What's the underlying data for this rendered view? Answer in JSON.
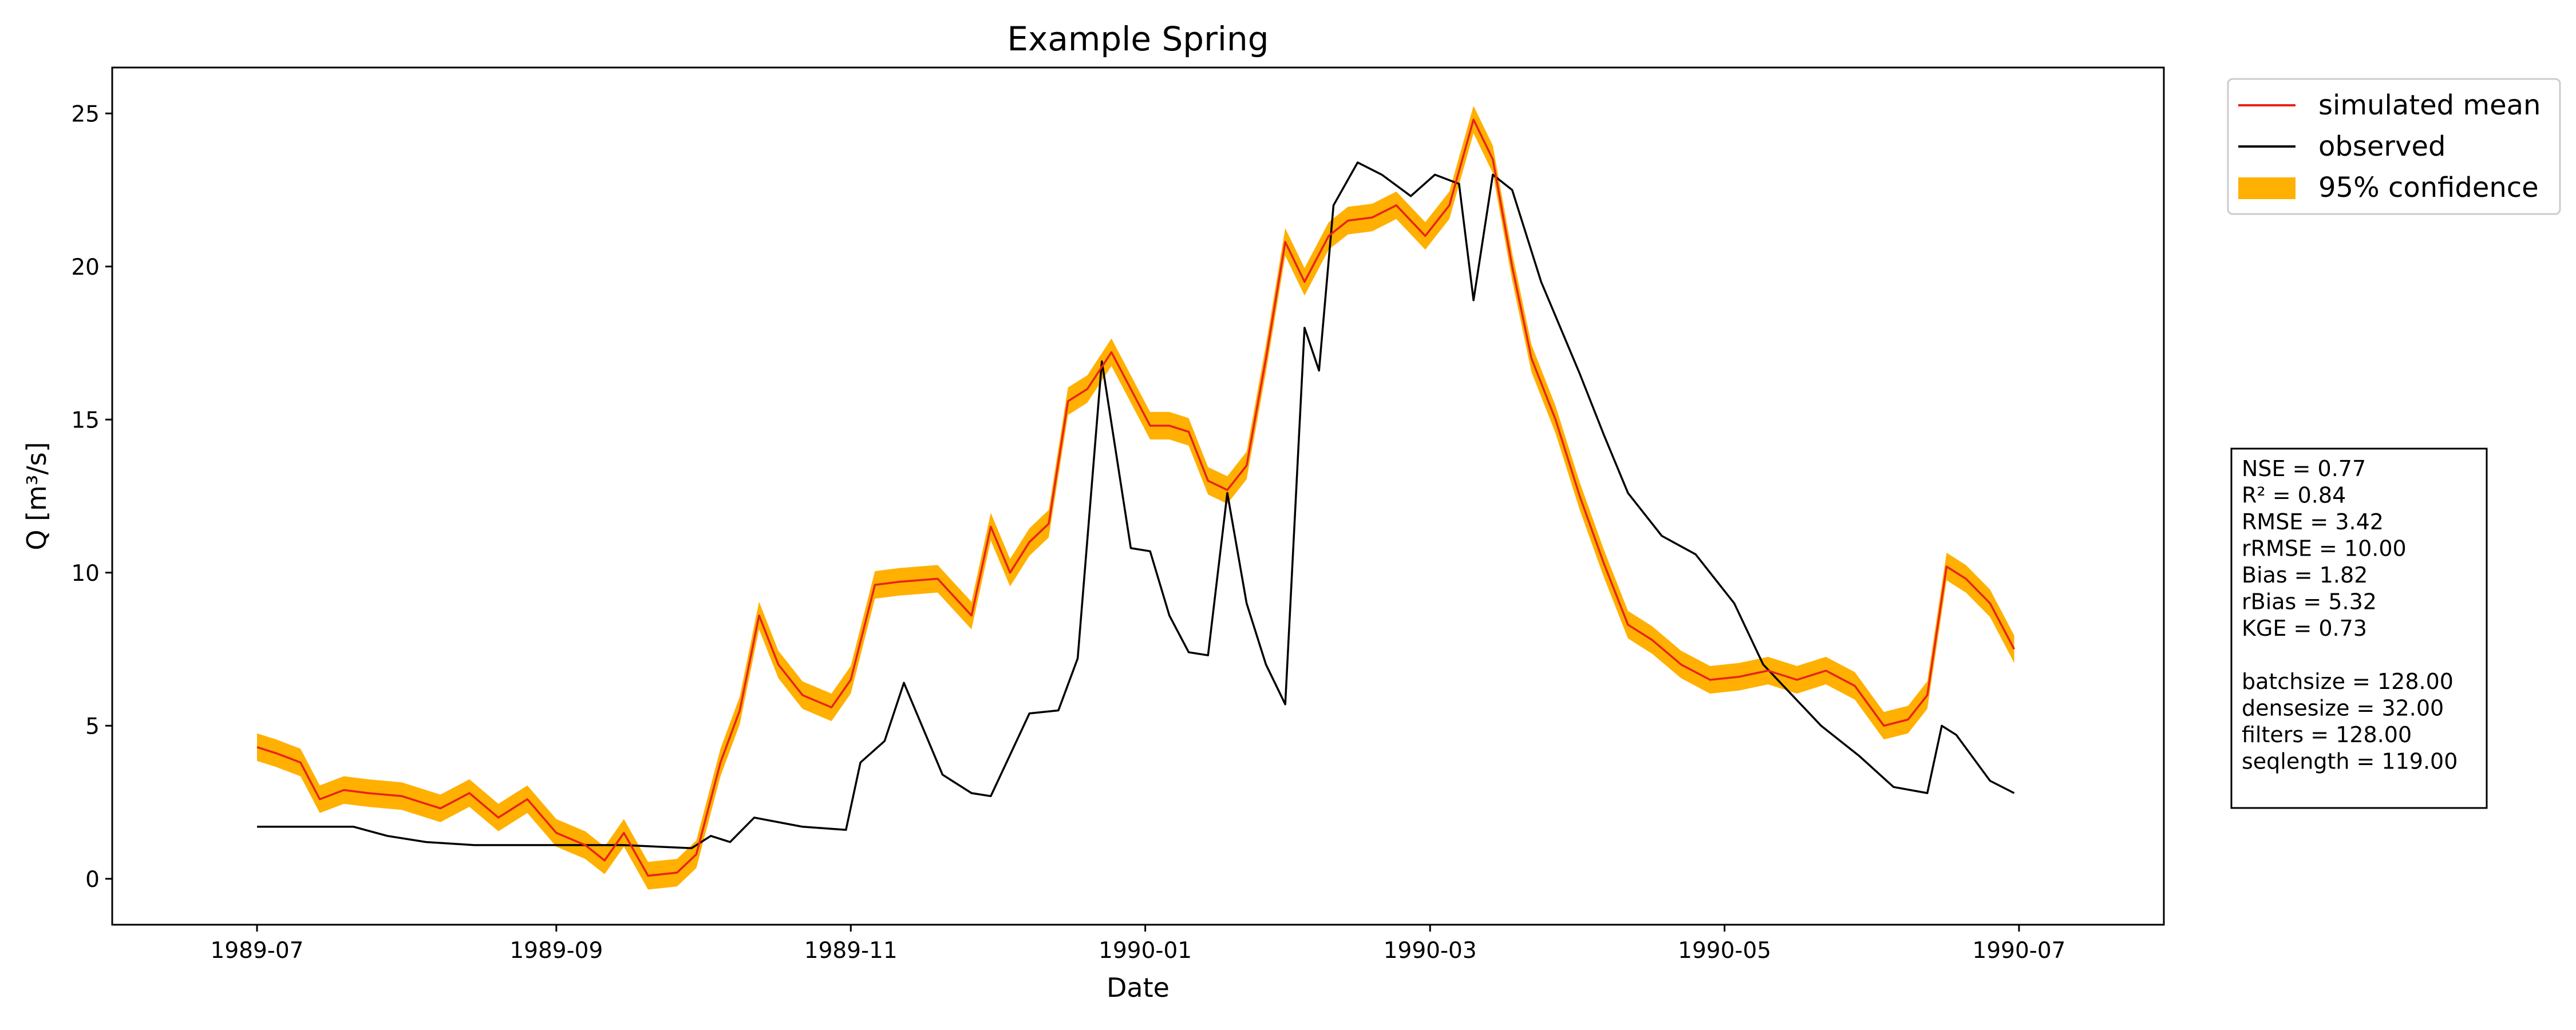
{
  "chart_data": {
    "type": "line",
    "title": "Example Spring",
    "xlabel": "Date",
    "ylabel": "Q [m³/s]",
    "xlim": [
      "1989-06-01",
      "1990-07-31"
    ],
    "ylim": [
      -1.5,
      26.5
    ],
    "x_ticks": [
      "1989-07",
      "1989-09",
      "1989-11",
      "1990-01",
      "1990-03",
      "1990-05",
      "1990-07"
    ],
    "y_ticks": [
      0,
      5,
      10,
      15,
      20,
      25
    ],
    "grid": false,
    "legend_position": "outside-upper-right",
    "series": [
      {
        "name": "simulated mean",
        "kind": "line",
        "color": "#e8231a",
        "x": [
          "1989-07-01",
          "1989-07-05",
          "1989-07-10",
          "1989-07-14",
          "1989-07-19",
          "1989-07-24",
          "1989-07-31",
          "1989-08-08",
          "1989-08-14",
          "1989-08-20",
          "1989-08-26",
          "1989-09-01",
          "1989-09-07",
          "1989-09-11",
          "1989-09-15",
          "1989-09-20",
          "1989-09-26",
          "1989-09-30",
          "1989-10-05",
          "1989-10-09",
          "1989-10-13",
          "1989-10-17",
          "1989-10-22",
          "1989-10-28",
          "1989-11-01",
          "1989-11-06",
          "1989-11-11",
          "1989-11-19",
          "1989-11-26",
          "1989-11-30",
          "1989-12-04",
          "1989-12-08",
          "1989-12-12",
          "1989-12-16",
          "1989-12-20",
          "1989-12-25",
          "1989-12-29",
          "1990-01-02",
          "1990-01-06",
          "1990-01-10",
          "1990-01-14",
          "1990-01-18",
          "1990-01-22",
          "1990-01-26",
          "1990-01-30",
          "1990-02-03",
          "1990-02-08",
          "1990-02-12",
          "1990-02-17",
          "1990-02-22",
          "1990-02-28",
          "1990-03-05",
          "1990-03-10",
          "1990-03-14",
          "1990-03-18",
          "1990-03-22",
          "1990-03-27",
          "1990-04-01",
          "1990-04-06",
          "1990-04-11",
          "1990-04-16",
          "1990-04-22",
          "1990-04-28",
          "1990-05-04",
          "1990-05-10",
          "1990-05-16",
          "1990-05-22",
          "1990-05-28",
          "1990-06-03",
          "1990-06-08",
          "1990-06-12",
          "1990-06-16",
          "1990-06-20",
          "1990-06-25",
          "1990-06-30"
        ],
        "y": [
          4.3,
          4.1,
          3.8,
          2.6,
          2.9,
          2.8,
          2.7,
          2.3,
          2.8,
          2.0,
          2.6,
          1.5,
          1.1,
          0.6,
          1.5,
          0.1,
          0.2,
          0.8,
          3.8,
          5.5,
          8.6,
          7.0,
          6.0,
          5.6,
          6.5,
          9.6,
          9.7,
          9.8,
          8.6,
          11.5,
          10.0,
          11.0,
          11.6,
          15.6,
          16.0,
          17.2,
          16.0,
          14.8,
          14.8,
          14.6,
          13.0,
          12.7,
          13.5,
          17.0,
          20.8,
          19.5,
          21.0,
          21.5,
          21.6,
          22.0,
          21.0,
          22.0,
          24.8,
          23.5,
          20.0,
          17.0,
          15.0,
          12.5,
          10.3,
          8.3,
          7.8,
          7.0,
          6.5,
          6.6,
          6.8,
          6.5,
          6.8,
          6.3,
          5.0,
          5.2,
          6.0,
          10.2,
          9.8,
          9.0,
          7.5
        ]
      },
      {
        "name": "observed",
        "kind": "line",
        "color": "#000000",
        "x": [
          "1989-07-01",
          "1989-07-21",
          "1989-07-28",
          "1989-08-05",
          "1989-08-15",
          "1989-09-15",
          "1989-09-29",
          "1989-10-03",
          "1989-10-07",
          "1989-10-12",
          "1989-10-22",
          "1989-10-31",
          "1989-11-03",
          "1989-11-08",
          "1989-11-12",
          "1989-11-20",
          "1989-11-26",
          "1989-11-30",
          "1989-12-08",
          "1989-12-14",
          "1989-12-18",
          "1989-12-23",
          "1989-12-29",
          "1990-01-02",
          "1990-01-06",
          "1990-01-10",
          "1990-01-14",
          "1990-01-18",
          "1990-01-22",
          "1990-01-26",
          "1990-01-30",
          "1990-02-03",
          "1990-02-06",
          "1990-02-09",
          "1990-02-14",
          "1990-02-19",
          "1990-02-25",
          "1990-03-02",
          "1990-03-07",
          "1990-03-10",
          "1990-03-14",
          "1990-03-18",
          "1990-03-24",
          "1990-04-01",
          "1990-04-06",
          "1990-04-11",
          "1990-04-18",
          "1990-04-25",
          "1990-05-03",
          "1990-05-09",
          "1990-05-15",
          "1990-05-21",
          "1990-05-29",
          "1990-06-05",
          "1990-06-12",
          "1990-06-15",
          "1990-06-18",
          "1990-06-25",
          "1990-06-30"
        ],
        "y": [
          1.7,
          1.7,
          1.4,
          1.2,
          1.1,
          1.1,
          1.0,
          1.4,
          1.2,
          2.0,
          1.7,
          1.6,
          3.8,
          4.5,
          6.4,
          3.4,
          2.8,
          2.7,
          5.4,
          5.5,
          7.2,
          16.9,
          10.8,
          10.7,
          8.6,
          7.4,
          7.3,
          12.6,
          9.0,
          7.0,
          5.7,
          18.0,
          16.6,
          22.0,
          23.4,
          23.0,
          22.3,
          23.0,
          22.7,
          18.9,
          23.0,
          22.5,
          19.5,
          16.5,
          14.5,
          12.6,
          11.2,
          10.6,
          9.0,
          7.0,
          6.0,
          5.0,
          4.0,
          3.0,
          2.8,
          5.0,
          4.7,
          3.2,
          2.8
        ]
      },
      {
        "name": "95% confidence",
        "kind": "band",
        "color": "#ffb000",
        "half_width": 0.45
      }
    ],
    "metrics": {
      "lines": [
        "NSE = 0.77",
        "R²  = 0.84",
        "RMSE = 3.42",
        "rRMSE = 10.00",
        "Bias = 1.82",
        "rBias = 5.32",
        "KGE = 0.73",
        "",
        "batchsize = 128.00",
        "densesize = 32.00",
        "filters = 128.00",
        "seqlength = 119.00"
      ]
    }
  }
}
